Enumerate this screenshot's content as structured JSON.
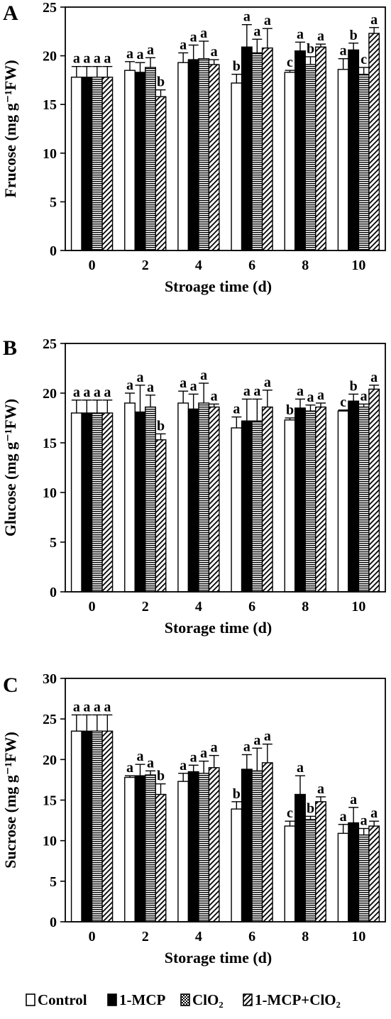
{
  "legend": [
    "Control",
    "1-MCP",
    "ClO₂",
    "1-MCP+ClO₂"
  ],
  "chart_data": [
    {
      "panel": "A",
      "type": "bar",
      "categories": [
        "0",
        "2",
        "4",
        "6",
        "8",
        "10"
      ],
      "xlabel": "Stroage time (d)",
      "ylabel": "Frucose (mg g⁻¹FW)",
      "ylim": [
        0,
        25
      ],
      "yticks": [
        0,
        5,
        10,
        15,
        20,
        25
      ],
      "series": [
        {
          "name": "Control",
          "values": [
            17.8,
            18.5,
            19.3,
            17.2,
            18.3,
            18.6
          ],
          "errors": [
            1.1,
            0.9,
            1.0,
            0.9,
            0.2,
            1.1
          ],
          "letters": [
            "a",
            "a",
            "a",
            "b",
            "c",
            "a"
          ]
        },
        {
          "name": "1-MCP",
          "values": [
            17.8,
            18.3,
            19.6,
            20.9,
            20.5,
            20.6
          ],
          "errors": [
            1.1,
            1.0,
            1.5,
            2.3,
            0.9,
            0.7
          ],
          "letters": [
            "a",
            "a",
            "a",
            "a",
            "a",
            "b"
          ]
        },
        {
          "name": "ClO₂",
          "values": [
            17.8,
            18.8,
            19.7,
            20.3,
            19.1,
            18.1
          ],
          "errors": [
            1.1,
            1.0,
            1.8,
            1.4,
            0.8,
            0.7
          ],
          "letters": [
            "a",
            "a",
            "a",
            "a",
            "b",
            "c"
          ]
        },
        {
          "name": "1-MCP+ClO₂",
          "values": [
            17.8,
            15.8,
            19.1,
            20.8,
            20.9,
            22.3
          ],
          "errors": [
            1.1,
            0.7,
            0.5,
            2.0,
            0.3,
            0.6
          ],
          "letters": [
            "a",
            "b",
            "a",
            "a",
            "a",
            "a"
          ]
        }
      ]
    },
    {
      "panel": "B",
      "type": "bar",
      "categories": [
        "0",
        "2",
        "4",
        "6",
        "8",
        "10"
      ],
      "xlabel": "Storage time (d)",
      "ylabel": "Glucose (mg g⁻¹FW)",
      "ylim": [
        0,
        25
      ],
      "yticks": [
        0,
        5,
        10,
        15,
        20,
        25
      ],
      "series": [
        {
          "name": "Control",
          "values": [
            18.0,
            19.0,
            19.0,
            16.5,
            17.3,
            18.2
          ],
          "errors": [
            1.3,
            1.0,
            1.2,
            1.1,
            0.2,
            0.1
          ],
          "letters": [
            "a",
            "a",
            "a",
            "a",
            "b",
            "c"
          ]
        },
        {
          "name": "1-MCP",
          "values": [
            18.0,
            18.1,
            18.4,
            17.2,
            18.5,
            19.2
          ],
          "errors": [
            1.3,
            2.7,
            1.5,
            2.2,
            0.9,
            0.7
          ],
          "letters": [
            "a",
            "a",
            "a",
            "a",
            "a",
            "b"
          ]
        },
        {
          "name": "ClO₂",
          "values": [
            18.0,
            18.6,
            19.0,
            17.2,
            18.2,
            18.6
          ],
          "errors": [
            1.3,
            1.2,
            2.0,
            2.2,
            0.6,
            0.3
          ],
          "letters": [
            "a",
            "a",
            "a",
            "a",
            "a",
            "a"
          ]
        },
        {
          "name": "1-MCP+ClO₂",
          "values": [
            18.0,
            15.3,
            18.6,
            18.6,
            18.6,
            20.4
          ],
          "errors": [
            1.3,
            0.6,
            0.3,
            1.7,
            0.4,
            0.4
          ],
          "letters": [
            "a",
            "b",
            "a",
            "a",
            "a",
            "a"
          ]
        }
      ]
    },
    {
      "panel": "C",
      "type": "bar",
      "categories": [
        "0",
        "2",
        "4",
        "6",
        "8",
        "10"
      ],
      "xlabel": "Storage time (d)",
      "ylabel": "Sucrose (mg g⁻¹FW)",
      "ylim": [
        0,
        30
      ],
      "yticks": [
        0,
        5,
        10,
        15,
        20,
        25,
        30
      ],
      "series": [
        {
          "name": "Control",
          "values": [
            23.5,
            17.8,
            17.3,
            13.9,
            11.8,
            10.9
          ],
          "errors": [
            2.0,
            0.2,
            1.0,
            0.9,
            0.6,
            1.1
          ],
          "letters": [
            "a",
            "a",
            "a",
            "b",
            "c",
            "a"
          ]
        },
        {
          "name": "1-MCP",
          "values": [
            23.5,
            18.0,
            18.5,
            18.8,
            15.7,
            12.2
          ],
          "errors": [
            2.0,
            1.4,
            0.8,
            1.8,
            2.3,
            1.9
          ],
          "letters": [
            "a",
            "a",
            "a",
            "a",
            "a",
            "a"
          ]
        },
        {
          "name": "ClO₂",
          "values": [
            23.5,
            18.1,
            18.3,
            18.6,
            12.6,
            10.7
          ],
          "errors": [
            2.0,
            0.5,
            1.5,
            2.8,
            0.4,
            0.8
          ],
          "letters": [
            "a",
            "a",
            "a",
            "a",
            "b",
            "a"
          ]
        },
        {
          "name": "1-MCP+ClO₂",
          "values": [
            23.5,
            15.7,
            19.0,
            19.6,
            14.8,
            11.8
          ],
          "errors": [
            2.0,
            1.3,
            1.5,
            2.3,
            0.6,
            0.6
          ],
          "letters": [
            "a",
            "b",
            "a",
            "a",
            "a",
            "a"
          ]
        }
      ]
    }
  ]
}
